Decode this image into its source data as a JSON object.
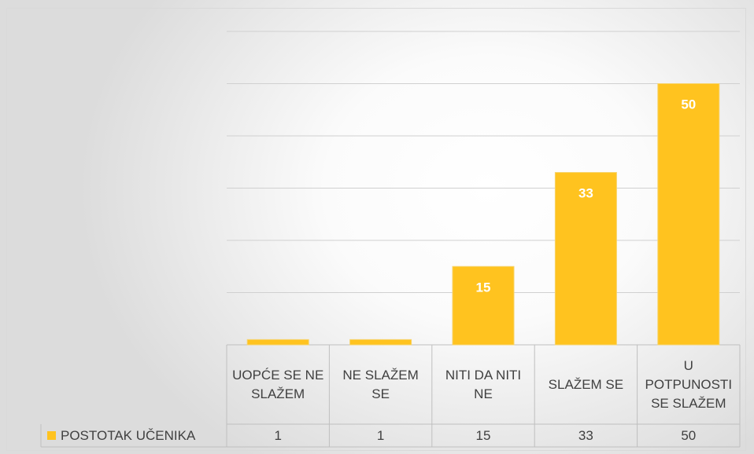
{
  "chart_data": {
    "type": "bar",
    "categories": [
      "UOPĆE SE NE SLAŽEM",
      "NE SLAŽEM SE",
      "NITI DA NITI NE",
      "SLAŽEM SE",
      "U POTPUNOSTI SE SLAŽEM"
    ],
    "series": [
      {
        "name": "POSTOTAK UČENIKA",
        "color": "#ffc31f",
        "values": [
          1,
          1,
          15,
          33,
          50
        ]
      }
    ],
    "ylim": [
      0,
      60
    ],
    "yticks": [
      0,
      10,
      20,
      30,
      40,
      50,
      60
    ],
    "grid": true
  }
}
